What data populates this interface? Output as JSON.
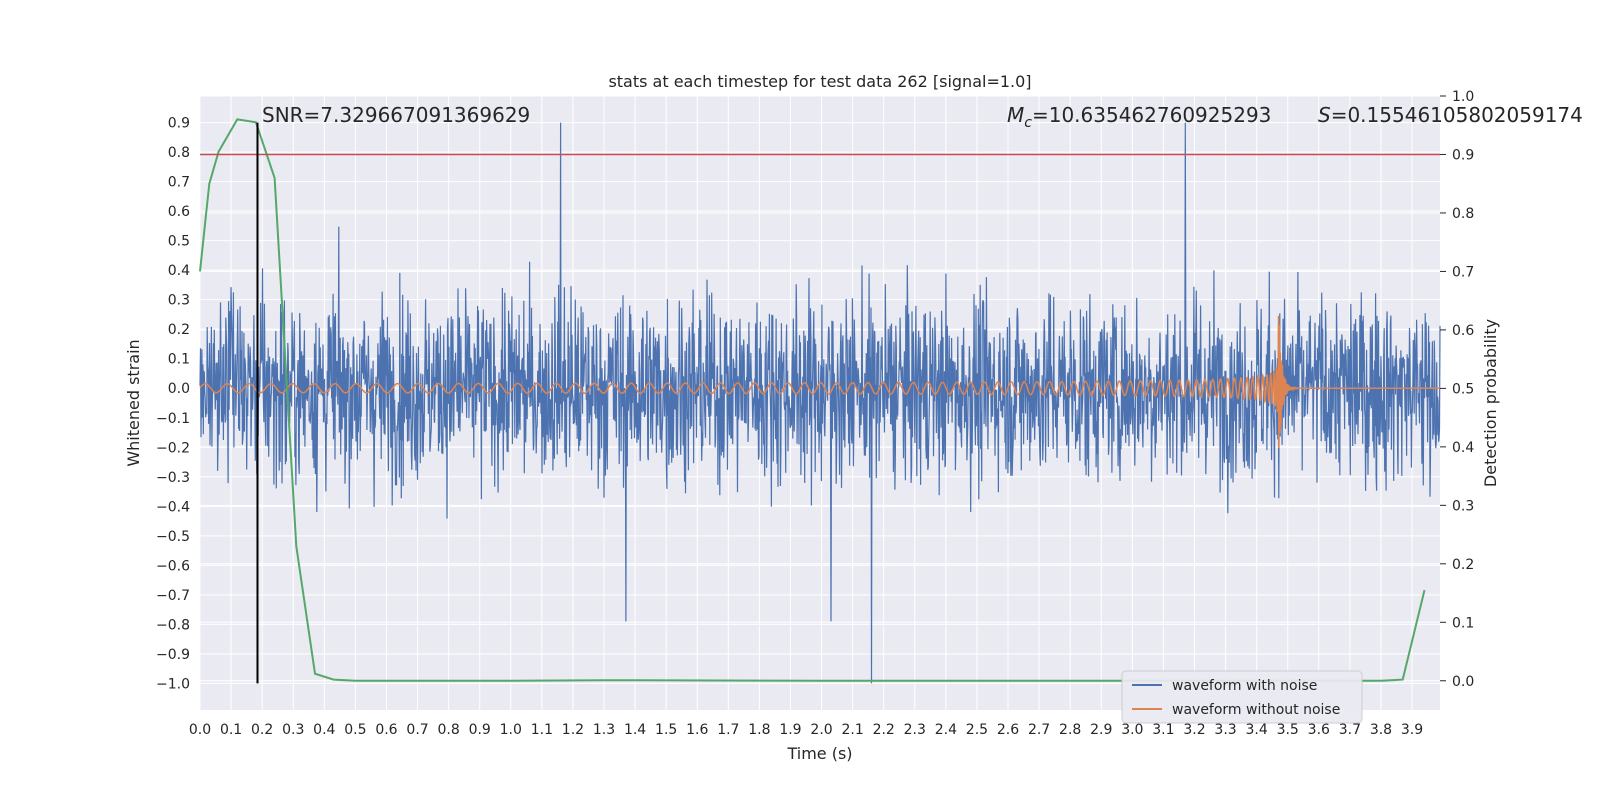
{
  "chart_data": {
    "type": "line",
    "title": "stats at each timestep for test data 262 [signal=1.0]",
    "xlabel": "Time (s)",
    "ylabel": "Whitened strain",
    "ylabel_right": "Detection probability",
    "xlim": [
      0.0,
      3.99
    ],
    "ylim": [
      -1.09,
      0.99
    ],
    "ylim_right": [
      -0.05,
      1.0
    ],
    "x_ticks": [
      "0.0",
      "0.1",
      "0.2",
      "0.3",
      "0.4",
      "0.5",
      "0.6",
      "0.7",
      "0.8",
      "0.9",
      "1.0",
      "1.1",
      "1.2",
      "1.3",
      "1.4",
      "1.5",
      "1.6",
      "1.7",
      "1.8",
      "1.9",
      "2.0",
      "2.1",
      "2.2",
      "2.3",
      "2.4",
      "2.5",
      "2.6",
      "2.7",
      "2.8",
      "2.9",
      "3.0",
      "3.1",
      "3.2",
      "3.3",
      "3.4",
      "3.5",
      "3.6",
      "3.7",
      "3.8",
      "3.9"
    ],
    "y_ticks": [
      "0.9",
      "0.8",
      "0.7",
      "0.6",
      "0.5",
      "0.4",
      "0.3",
      "0.2",
      "0.1",
      "0.0",
      "−0.1",
      "−0.2",
      "−0.3",
      "−0.4",
      "−0.5",
      "−0.6",
      "−0.7",
      "−0.8",
      "−0.9",
      "−1.0"
    ],
    "y_ticks_right": [
      "1.0",
      "0.9",
      "0.8",
      "0.7",
      "0.6",
      "0.5",
      "0.4",
      "0.3",
      "0.2",
      "0.1",
      "0.0"
    ],
    "annotations": {
      "snr": "SNR=7.329667091369629",
      "mc_symbol": "M",
      "mc_sub": "c",
      "mc_value": "=10.635462760925293",
      "s_symbol": "S",
      "s_value": "=0.1554610580205917​4"
    },
    "threshold_probability": 0.9,
    "marker_time": 0.185,
    "series": [
      {
        "name": "waveform with noise",
        "color": "#4c72b0",
        "duration": 3.99,
        "amplitude_envelope": [
          0.45,
          0.5,
          0.55,
          0.6,
          0.65
        ],
        "notable_peaks": [
          [
            1.16,
            0.9
          ],
          [
            3.17,
            0.9
          ],
          [
            2.16,
            -1.0
          ],
          [
            2.03,
            -0.79
          ],
          [
            1.37,
            -0.79
          ]
        ]
      },
      {
        "name": "waveform without noise",
        "color": "#dd8452",
        "merger_time": 3.47,
        "peak_amplitude": 0.3,
        "min_amplitude": -0.22,
        "initial_amplitude": 0.015
      },
      {
        "name": "detection probability",
        "color": "#55a868",
        "axis": "right",
        "x": [
          0.0,
          0.03,
          0.06,
          0.12,
          0.18,
          0.24,
          0.31,
          0.37,
          0.43,
          0.5,
          1.0,
          1.3,
          2.0,
          3.0,
          3.8,
          3.87,
          3.94
        ],
        "y": [
          0.7,
          0.85,
          0.905,
          0.96,
          0.955,
          0.86,
          0.23,
          0.012,
          0.002,
          0.0,
          0.0,
          0.001,
          0.0,
          0.0,
          0.0,
          0.002,
          0.155
        ]
      }
    ],
    "legend": {
      "position": "lower-right",
      "entries": [
        {
          "label": "waveform with noise",
          "color": "#4c72b0"
        },
        {
          "label": "waveform without noise",
          "color": "#dd8452"
        }
      ]
    },
    "colors": {
      "background": "#eaeaf2",
      "grid": "#ffffff",
      "threshold_line": "#c44e52",
      "marker_line": "#000000"
    }
  }
}
